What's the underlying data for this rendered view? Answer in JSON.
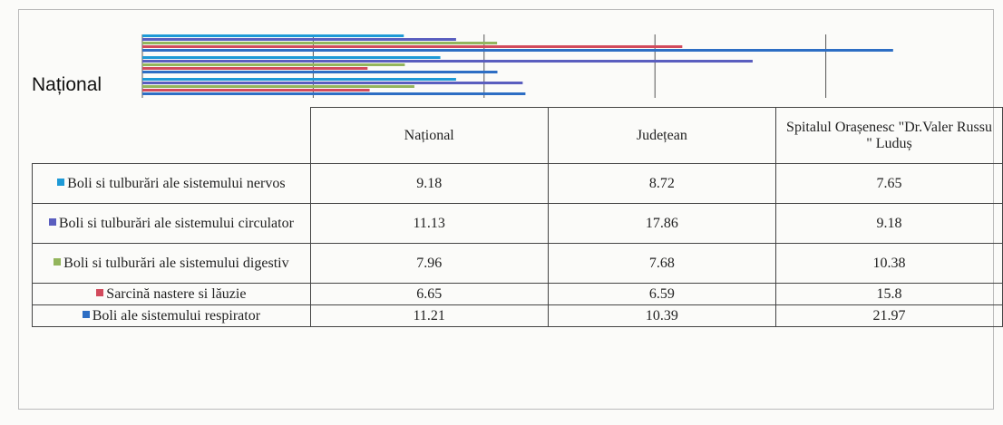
{
  "chart_data": {
    "type": "bar",
    "orientation": "horizontal",
    "categories": [
      "Național",
      "Județean",
      "Spitalul Orașenesc \"Dr.Valer Russu \" Luduș"
    ],
    "series": [
      {
        "name": "Boli si tulburări ale sistemului nervos",
        "color": "#1e9ad6",
        "values": [
          9.18,
          8.72,
          7.65
        ]
      },
      {
        "name": "Boli si tulburări ale sistemului circulator",
        "color": "#5a5ebf",
        "values": [
          11.13,
          17.86,
          9.18
        ]
      },
      {
        "name": "Boli si tulburări ale sistemului digestiv",
        "color": "#93b55c",
        "values": [
          7.96,
          7.68,
          10.38
        ]
      },
      {
        "name": "Sarcină nastere si lăuzie",
        "color": "#d24a5c",
        "values": [
          6.65,
          6.59,
          15.8
        ]
      },
      {
        "name": "Boli ale sistemului respirator",
        "color": "#2d6ec4",
        "values": [
          11.21,
          10.39,
          21.97
        ]
      }
    ],
    "xlim": [
      0,
      25
    ],
    "xticks": [
      0,
      5,
      10,
      15,
      20
    ],
    "grid": true
  }
}
